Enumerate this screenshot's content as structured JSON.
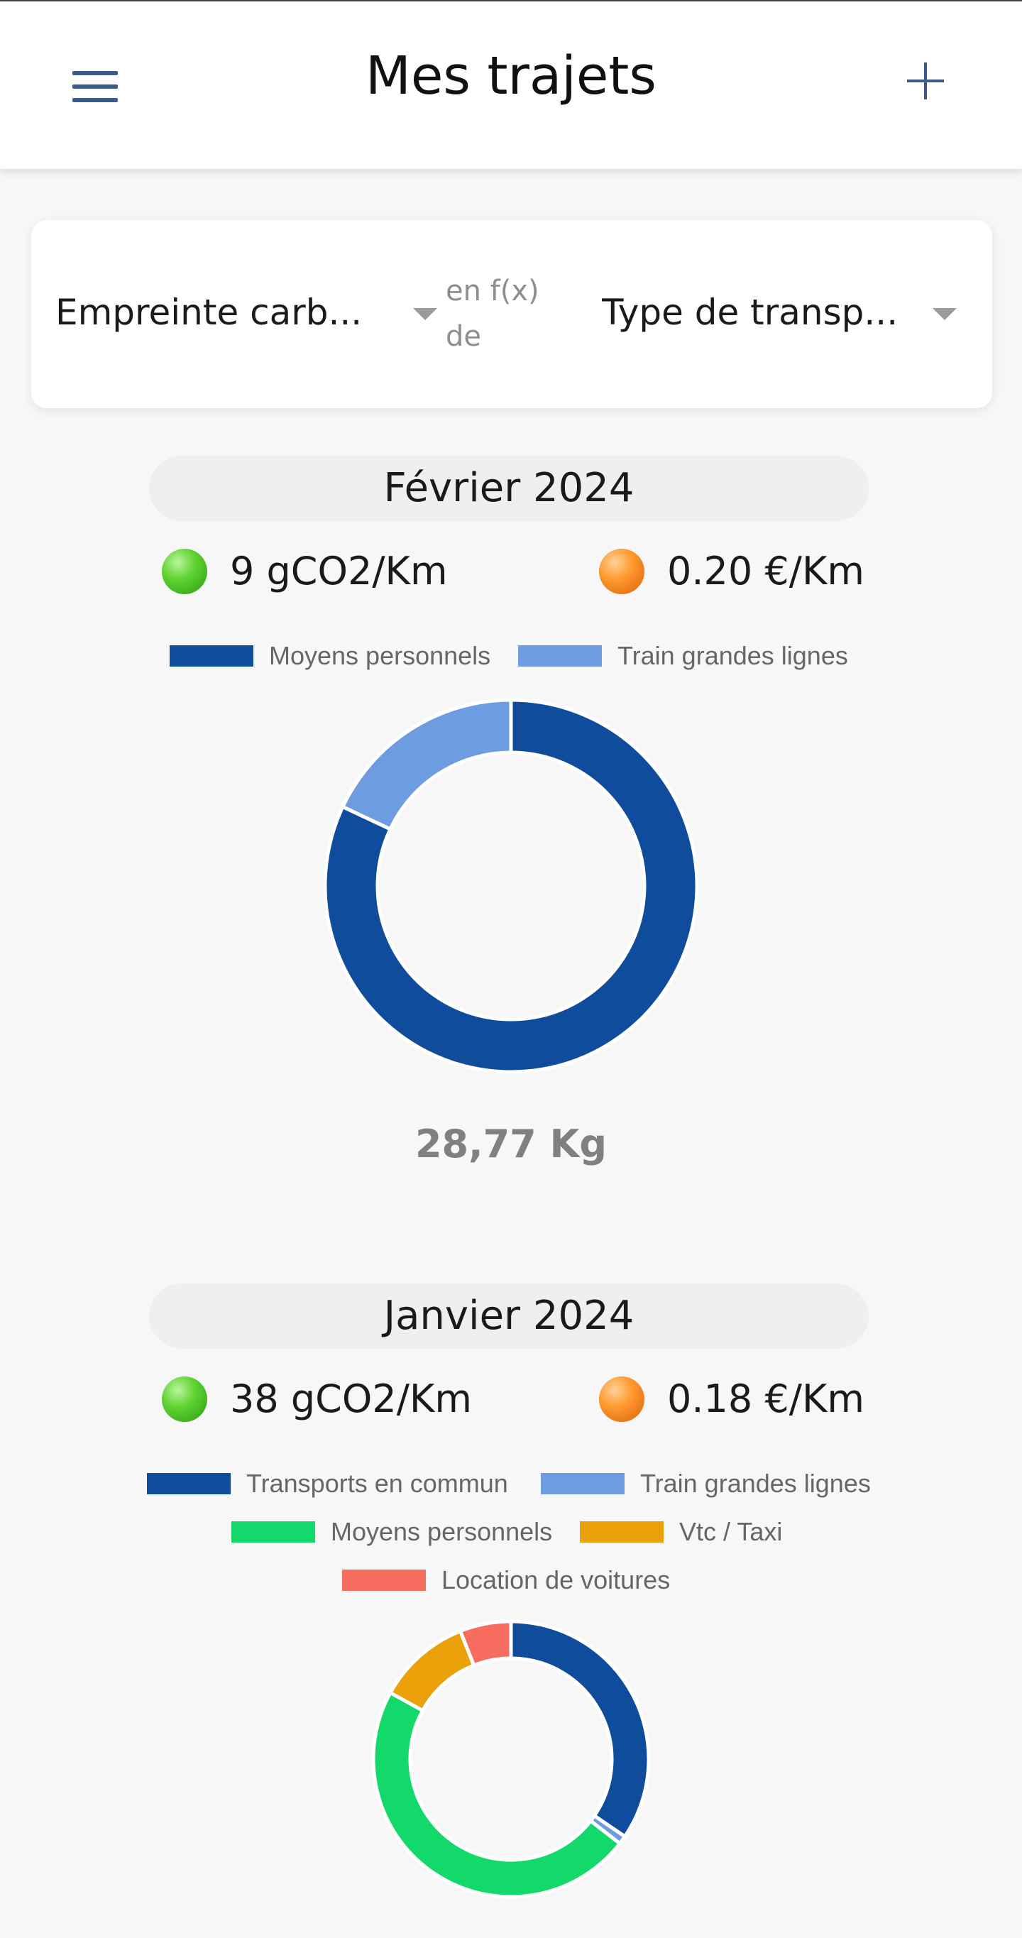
{
  "header": {
    "title": "Mes trajets",
    "menu_icon": "hamburger-menu-icon",
    "add_icon": "plus-icon"
  },
  "filters": {
    "metric": "Empreinte carb...",
    "connector": "en f(x) de",
    "grouping": "Type de transp..."
  },
  "months": [
    {
      "title": "Février 2024",
      "co2_per_km": "9 gCO2/Km",
      "cost_per_km": "0.20 €/Km",
      "total": "28,77 Kg"
    },
    {
      "title": "Janvier 2024",
      "co2_per_km": "38 gCO2/Km",
      "cost_per_km": "0.18 €/Km"
    }
  ],
  "colors": {
    "accent": "#3d5a8a",
    "moyens_personnels_feb": "#0f4c9c",
    "train_grandes_lignes": "#6d9de0",
    "transports_en_commun": "#0f4c9c",
    "moyens_personnels_jan": "#12d96a",
    "vtc_taxi": "#eba10a",
    "location_voitures": "#f76d60",
    "indicator_green": "#5fd331",
    "indicator_orange": "#ff9a2e"
  },
  "chart_data": [
    {
      "type": "pie",
      "title": "Février 2024",
      "categories": [
        "Moyens personnels",
        "Train grandes lignes"
      ],
      "values": [
        82,
        18
      ],
      "colors": [
        "#0f4c9c",
        "#6d9de0"
      ],
      "legend": "top"
    },
    {
      "type": "pie",
      "title": "Janvier 2024",
      "categories": [
        "Transports en commun",
        "Train grandes lignes",
        "Moyens personnels",
        "Vtc / Taxi",
        "Location de voitures"
      ],
      "values": [
        34.5,
        1,
        47.5,
        11,
        6
      ],
      "colors": [
        "#0f4c9c",
        "#6d9de0",
        "#12d96a",
        "#eba10a",
        "#f76d60"
      ],
      "legend": "top"
    }
  ]
}
